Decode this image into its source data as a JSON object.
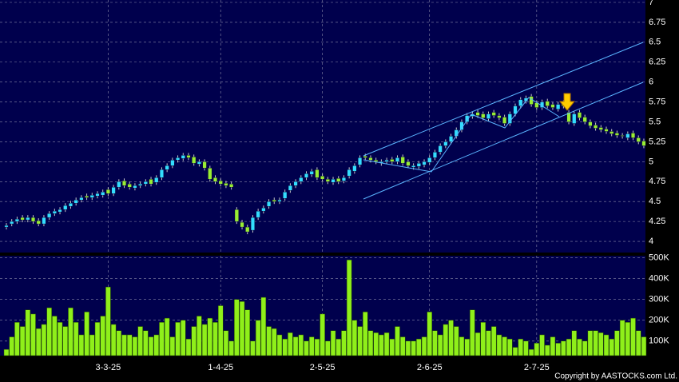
{
  "chart_data": {
    "type": "candlestick",
    "up_color": "#33ddff",
    "down_color": "#99ee33",
    "volume_color": "#8fef1a",
    "grid": true,
    "ylim": [
      3.86,
      7.03
    ],
    "yticks": [
      4,
      4.25,
      4.5,
      4.75,
      5,
      5.25,
      5.5,
      5.75,
      6,
      6.25,
      6.5,
      6.75,
      7
    ],
    "volume_ylim": [
      30000,
      510000
    ],
    "volume_yticks": [
      {
        "value": 100000,
        "label": "100K"
      },
      {
        "value": 200000,
        "label": "200K"
      },
      {
        "value": 300000,
        "label": "300K"
      },
      {
        "value": 400000,
        "label": "400K"
      },
      {
        "value": 500000,
        "label": "500K"
      }
    ],
    "copyright": "Copyright by AASTOCKS.com Ltd.",
    "categories": [
      null,
      null,
      null,
      null,
      null,
      null,
      null,
      null,
      null,
      null,
      null,
      null,
      null,
      null,
      null,
      null,
      null,
      null,
      null,
      "3-3-25",
      null,
      null,
      null,
      null,
      null,
      null,
      null,
      null,
      null,
      null,
      null,
      null,
      null,
      null,
      null,
      null,
      null,
      null,
      null,
      null,
      "1-4-25",
      null,
      null,
      null,
      null,
      null,
      null,
      null,
      null,
      null,
      null,
      null,
      null,
      null,
      null,
      null,
      null,
      null,
      null,
      "2-5-25",
      null,
      null,
      null,
      null,
      null,
      null,
      null,
      null,
      null,
      null,
      null,
      null,
      null,
      null,
      null,
      null,
      null,
      null,
      null,
      "2-6-25",
      null,
      null,
      null,
      null,
      null,
      null,
      null,
      null,
      null,
      null,
      null,
      null,
      null,
      null,
      null,
      null,
      null,
      null,
      null,
      "2-7-25",
      null,
      null,
      null,
      null,
      null,
      null,
      null,
      null,
      null,
      null,
      null,
      null,
      null,
      null,
      null,
      null,
      null,
      null,
      null,
      null
    ],
    "open": [
      4.18,
      4.22,
      4.25,
      4.3,
      4.27,
      4.3,
      4.26,
      4.22,
      4.3,
      4.35,
      4.37,
      4.4,
      4.44,
      4.48,
      4.52,
      4.57,
      4.55,
      4.57,
      4.58,
      4.65,
      4.6,
      4.68,
      4.76,
      4.72,
      4.67,
      4.7,
      4.72,
      4.78,
      4.74,
      4.8,
      4.9,
      4.95,
      5.02,
      5.04,
      5.08,
      5.06,
      4.97,
      5.0,
      4.92,
      4.8,
      4.76,
      4.73,
      4.72,
      4.4,
      4.24,
      4.18,
      4.14,
      4.3,
      4.38,
      4.44,
      4.52,
      4.5,
      4.54,
      4.64,
      4.7,
      4.75,
      4.8,
      4.84,
      4.9,
      4.82,
      4.78,
      4.74,
      4.79,
      4.76,
      4.82,
      4.88,
      4.96,
      5.07,
      5.05,
      5.02,
      4.98,
      5.0,
      5.03,
      5.0,
      5.06,
      5.0,
      4.93,
      4.94,
      4.96,
      4.99,
      5.05,
      5.12,
      5.2,
      5.25,
      5.32,
      5.4,
      5.5,
      5.57,
      5.62,
      5.6,
      5.54,
      5.62,
      5.58,
      5.56,
      5.48,
      5.6,
      5.7,
      5.76,
      5.82,
      5.74,
      5.68,
      5.76,
      5.72,
      5.66,
      5.74,
      5.62,
      5.48,
      5.62,
      5.56,
      5.5,
      5.46,
      5.43,
      5.41,
      5.38,
      5.36,
      5.33,
      5.3,
      5.36,
      5.3,
      5.26
    ],
    "high": [
      4.23,
      4.28,
      4.31,
      4.33,
      4.33,
      4.33,
      4.29,
      4.33,
      4.38,
      4.41,
      4.43,
      4.48,
      4.51,
      4.55,
      4.58,
      4.6,
      4.61,
      4.63,
      4.65,
      4.68,
      4.71,
      4.78,
      4.79,
      4.75,
      4.73,
      4.75,
      4.78,
      4.81,
      4.83,
      4.93,
      4.98,
      5.05,
      5.08,
      5.11,
      5.11,
      5.09,
      5.03,
      5.03,
      4.95,
      4.83,
      4.79,
      4.76,
      4.75,
      4.43,
      4.27,
      4.21,
      4.33,
      4.41,
      4.45,
      4.53,
      4.55,
      4.55,
      4.65,
      4.73,
      4.78,
      4.83,
      4.88,
      4.91,
      4.93,
      4.85,
      4.81,
      4.81,
      4.82,
      4.83,
      4.93,
      4.98,
      5.08,
      5.1,
      5.08,
      5.05,
      5.03,
      5.05,
      5.06,
      5.08,
      5.09,
      5.03,
      4.98,
      5.01,
      5.03,
      5.08,
      5.15,
      5.23,
      5.28,
      5.35,
      5.43,
      5.53,
      5.61,
      5.63,
      5.65,
      5.63,
      5.63,
      5.65,
      5.61,
      5.59,
      5.63,
      5.73,
      5.81,
      5.83,
      5.85,
      5.77,
      5.78,
      5.79,
      5.75,
      5.75,
      5.77,
      5.65,
      5.63,
      5.65,
      5.59,
      5.53,
      5.49,
      5.46,
      5.44,
      5.41,
      5.39,
      5.36,
      5.38,
      5.39,
      5.33,
      5.29
    ],
    "low": [
      4.15,
      4.19,
      4.22,
      4.24,
      4.24,
      4.22,
      4.19,
      4.19,
      4.27,
      4.32,
      4.34,
      4.37,
      4.41,
      4.45,
      4.49,
      4.52,
      4.52,
      4.54,
      4.55,
      4.57,
      4.57,
      4.65,
      4.67,
      4.65,
      4.64,
      4.67,
      4.69,
      4.69,
      4.71,
      4.77,
      4.87,
      4.92,
      4.99,
      5.01,
      5.02,
      4.95,
      4.94,
      4.89,
      4.75,
      4.72,
      4.69,
      4.67,
      4.65,
      4.22,
      4.15,
      4.09,
      4.11,
      4.27,
      4.35,
      4.41,
      4.47,
      4.47,
      4.51,
      4.61,
      4.67,
      4.72,
      4.77,
      4.81,
      4.77,
      4.75,
      4.72,
      4.71,
      4.72,
      4.73,
      4.79,
      4.85,
      4.93,
      5.02,
      4.99,
      4.97,
      4.95,
      4.97,
      4.97,
      4.97,
      4.95,
      4.92,
      4.9,
      4.91,
      4.93,
      4.96,
      5.02,
      5.09,
      5.17,
      5.22,
      5.29,
      5.37,
      5.47,
      5.54,
      5.55,
      5.52,
      5.51,
      5.55,
      5.52,
      5.45,
      5.45,
      5.57,
      5.67,
      5.73,
      5.69,
      5.65,
      5.65,
      5.67,
      5.65,
      5.63,
      5.67,
      5.47,
      5.45,
      5.52,
      5.47,
      5.42,
      5.39,
      5.37,
      5.35,
      5.32,
      5.3,
      5.29,
      5.27,
      5.27,
      5.22,
      5.17
    ],
    "close": [
      4.2,
      4.25,
      4.28,
      4.27,
      4.3,
      4.25,
      4.22,
      4.3,
      4.35,
      4.38,
      4.4,
      4.45,
      4.48,
      4.52,
      4.55,
      4.55,
      4.58,
      4.6,
      4.62,
      4.6,
      4.68,
      4.75,
      4.7,
      4.68,
      4.7,
      4.72,
      4.75,
      4.72,
      4.8,
      4.9,
      4.95,
      5.02,
      5.05,
      5.08,
      5.05,
      4.98,
      5.0,
      4.92,
      4.78,
      4.75,
      4.72,
      4.7,
      4.68,
      4.25,
      4.18,
      4.12,
      4.3,
      4.38,
      4.42,
      4.5,
      4.5,
      4.52,
      4.62,
      4.7,
      4.75,
      4.8,
      4.85,
      4.88,
      4.8,
      4.78,
      4.75,
      4.78,
      4.75,
      4.8,
      4.9,
      4.95,
      5.05,
      5.05,
      5.02,
      5.0,
      5.0,
      5.02,
      5.0,
      5.05,
      4.98,
      4.95,
      4.95,
      4.98,
      5.0,
      5.05,
      5.12,
      5.2,
      5.25,
      5.32,
      5.4,
      5.5,
      5.58,
      5.6,
      5.58,
      5.55,
      5.6,
      5.58,
      5.55,
      5.48,
      5.6,
      5.7,
      5.78,
      5.8,
      5.72,
      5.68,
      5.75,
      5.7,
      5.68,
      5.72,
      5.7,
      5.5,
      5.6,
      5.55,
      5.5,
      5.45,
      5.42,
      5.4,
      5.38,
      5.35,
      5.33,
      5.32,
      5.35,
      5.3,
      5.25,
      5.2
    ],
    "volume": [
      60000,
      120000,
      190000,
      170000,
      250000,
      230000,
      160000,
      180000,
      260000,
      220000,
      190000,
      170000,
      260000,
      190000,
      130000,
      240000,
      130000,
      190000,
      220000,
      360000,
      180000,
      150000,
      130000,
      130000,
      120000,
      170000,
      150000,
      120000,
      130000,
      190000,
      210000,
      120000,
      190000,
      200000,
      110000,
      170000,
      220000,
      180000,
      210000,
      190000,
      270000,
      150000,
      100000,
      300000,
      290000,
      250000,
      100000,
      200000,
      310000,
      170000,
      160000,
      130000,
      110000,
      140000,
      120000,
      130000,
      100000,
      120000,
      110000,
      230000,
      100000,
      150000,
      110000,
      150000,
      490000,
      200000,
      170000,
      240000,
      150000,
      140000,
      130000,
      140000,
      110000,
      170000,
      120000,
      100000,
      100000,
      110000,
      120000,
      240000,
      150000,
      130000,
      180000,
      200000,
      170000,
      120000,
      110000,
      250000,
      140000,
      190000,
      150000,
      170000,
      130000,
      120000,
      110000,
      70000,
      110000,
      100000,
      60000,
      90000,
      130000,
      80000,
      120000,
      90000,
      100000,
      110000,
      150000,
      110000,
      100000,
      150000,
      150000,
      140000,
      130000,
      110000,
      150000,
      200000,
      190000,
      210000,
      150000,
      120000
    ]
  }
}
